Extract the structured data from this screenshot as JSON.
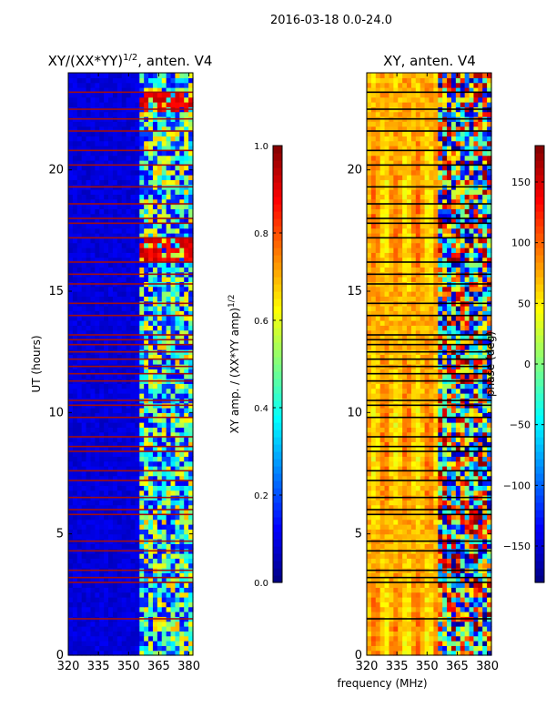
{
  "figure": {
    "suptitle": "2016-03-18 0.0-24.0",
    "shared_xlabel": "frequency (MHz)"
  },
  "colormap": {
    "name": "jet",
    "stops": [
      "#00007f",
      "#0000ff",
      "#007fff",
      "#00ffff",
      "#7fff7f",
      "#ffff00",
      "#ff7f00",
      "#ff0000",
      "#7f0000"
    ]
  },
  "chart_data": [
    {
      "type": "heatmap",
      "title": "XY/(XX*YY)",
      "title_sup": "1/2",
      "title_suffix": ", anten. V4",
      "xlabel": "",
      "ylabel": "UT (hours)",
      "xlim": [
        320,
        382
      ],
      "ylim": [
        0,
        24
      ],
      "xticks": [
        320,
        335,
        350,
        365,
        380
      ],
      "yticks": [
        0,
        5,
        10,
        15,
        20
      ],
      "channel_band_start": 357,
      "bright_band_hours": [
        [
          16.2,
          17.2
        ],
        [
          22.4,
          23.1
        ]
      ],
      "flag_color": "#a01010",
      "flagged_hours": [
        1.5,
        3.0,
        3.2,
        3.5,
        4.3,
        4.7,
        5.8,
        6.0,
        6.5,
        7.2,
        7.6,
        8.4,
        8.6,
        9.0,
        9.8,
        10.3,
        10.5,
        11.3,
        11.6,
        11.9,
        12.2,
        12.5,
        12.8,
        13.0,
        13.2,
        14.0,
        14.5,
        15.3,
        15.7,
        16.2,
        17.2,
        17.8,
        18.0,
        18.6,
        19.3,
        20.2,
        20.8,
        21.6,
        22.1,
        22.5,
        23.2
      ],
      "colorbar": {
        "label": "XY amp. / (XX*YY amp)",
        "label_sup": "1/2",
        "min": 0.0,
        "max": 1.0,
        "ticks": [
          0.0,
          0.2,
          0.4,
          0.6,
          0.8,
          1.0
        ],
        "tick_labels": [
          "0.0",
          "0.2",
          "0.4",
          "0.6",
          "0.8",
          "1.0"
        ]
      }
    },
    {
      "type": "heatmap",
      "title": "XY, anten. V4",
      "xlabel": "frequency (MHz)",
      "ylabel": "",
      "xlim": [
        320,
        382
      ],
      "ylim": [
        0,
        24
      ],
      "xticks": [
        320,
        335,
        350,
        365,
        380
      ],
      "yticks": [
        0,
        5,
        10,
        15,
        20
      ],
      "channel_band_start": 357,
      "flag_color": "#000000",
      "flagged_hours": [
        1.5,
        3.0,
        3.2,
        3.5,
        4.3,
        4.7,
        5.8,
        6.0,
        6.5,
        7.2,
        7.6,
        8.4,
        8.6,
        9.0,
        9.8,
        10.3,
        10.5,
        11.3,
        11.6,
        11.9,
        12.2,
        12.5,
        12.8,
        13.0,
        13.2,
        14.0,
        14.5,
        15.3,
        15.7,
        16.2,
        17.2,
        17.8,
        18.0,
        18.6,
        19.3,
        20.2,
        20.8,
        21.6,
        22.1,
        22.5,
        23.2
      ],
      "colorbar": {
        "label": "phase (deg)",
        "min": -180,
        "max": 180,
        "ticks": [
          -150,
          -100,
          -50,
          0,
          50,
          100,
          150
        ],
        "tick_labels": [
          "−150",
          "−100",
          "−50",
          "0",
          "50",
          "100",
          "150"
        ]
      }
    }
  ]
}
